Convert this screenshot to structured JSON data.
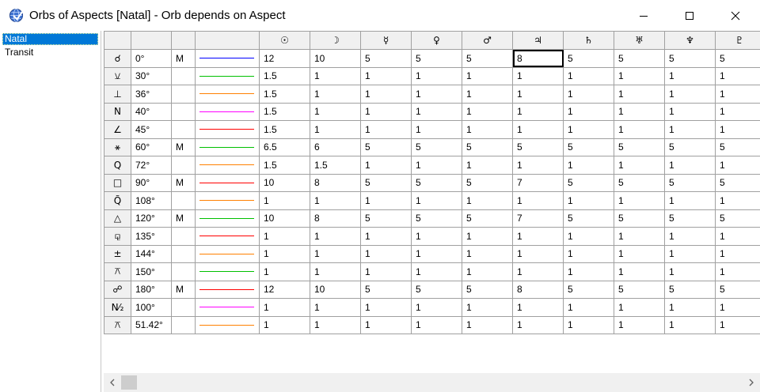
{
  "window": {
    "title": "Orbs of Aspects [Natal] - Orb depends on Aspect",
    "minimize_icon": "minimize-icon",
    "maximize_icon": "maximize-icon",
    "close_icon": "close-icon"
  },
  "sidebar": {
    "items": [
      {
        "label": "Natal",
        "selected": true
      },
      {
        "label": "Transit",
        "selected": false
      }
    ]
  },
  "planets": [
    {
      "glyph": "☉",
      "name": "sun"
    },
    {
      "glyph": "☽",
      "name": "moon"
    },
    {
      "glyph": "☿",
      "name": "mercury"
    },
    {
      "glyph": "♀",
      "name": "venus"
    },
    {
      "glyph": "♂",
      "name": "mars"
    },
    {
      "glyph": "♃",
      "name": "jupiter"
    },
    {
      "glyph": "♄",
      "name": "saturn"
    },
    {
      "glyph": "♅",
      "name": "uranus"
    },
    {
      "glyph": "♆",
      "name": "neptune"
    },
    {
      "glyph": "♇",
      "name": "pluto"
    }
  ],
  "aspects": [
    {
      "glyph": "☌",
      "name": "conjunction",
      "angle": "0°",
      "major": "M",
      "color": "#0000ff",
      "orbs": [
        "12",
        "10",
        "5",
        "5",
        "5",
        "8",
        "5",
        "5",
        "5",
        "5"
      ]
    },
    {
      "glyph": "⚺",
      "name": "semisextile",
      "angle": "30°",
      "major": "",
      "color": "#00c000",
      "orbs": [
        "1.5",
        "1",
        "1",
        "1",
        "1",
        "1",
        "1",
        "1",
        "1",
        "1"
      ]
    },
    {
      "glyph": "⊥",
      "name": "decile",
      "angle": "36°",
      "major": "",
      "color": "#ff8000",
      "orbs": [
        "1.5",
        "1",
        "1",
        "1",
        "1",
        "1",
        "1",
        "1",
        "1",
        "1"
      ]
    },
    {
      "glyph": "N",
      "name": "novile",
      "angle": "40°",
      "major": "",
      "color": "#ff00ff",
      "orbs": [
        "1.5",
        "1",
        "1",
        "1",
        "1",
        "1",
        "1",
        "1",
        "1",
        "1"
      ]
    },
    {
      "glyph": "∠",
      "name": "semisquare",
      "angle": "45°",
      "major": "",
      "color": "#ff0000",
      "orbs": [
        "1.5",
        "1",
        "1",
        "1",
        "1",
        "1",
        "1",
        "1",
        "1",
        "1"
      ]
    },
    {
      "glyph": "⚹",
      "name": "sextile",
      "angle": "60°",
      "major": "M",
      "color": "#00c000",
      "orbs": [
        "6.5",
        "6",
        "5",
        "5",
        "5",
        "5",
        "5",
        "5",
        "5",
        "5"
      ]
    },
    {
      "glyph": "Q",
      "name": "quintile",
      "angle": "72°",
      "major": "",
      "color": "#ff8000",
      "orbs": [
        "1.5",
        "1.5",
        "1",
        "1",
        "1",
        "1",
        "1",
        "1",
        "1",
        "1"
      ]
    },
    {
      "glyph": "□",
      "name": "square",
      "angle": "90°",
      "major": "M",
      "color": "#ff0000",
      "orbs": [
        "10",
        "8",
        "5",
        "5",
        "5",
        "7",
        "5",
        "5",
        "5",
        "5"
      ]
    },
    {
      "glyph": "Q̃",
      "name": "tredecile",
      "angle": "108°",
      "major": "",
      "color": "#ff8000",
      "orbs": [
        "1",
        "1",
        "1",
        "1",
        "1",
        "1",
        "1",
        "1",
        "1",
        "1"
      ]
    },
    {
      "glyph": "△",
      "name": "trine",
      "angle": "120°",
      "major": "M",
      "color": "#00c000",
      "orbs": [
        "10",
        "8",
        "5",
        "5",
        "5",
        "7",
        "5",
        "5",
        "5",
        "5"
      ]
    },
    {
      "glyph": "⚼",
      "name": "sesquiquadrate",
      "angle": "135°",
      "major": "",
      "color": "#ff0000",
      "orbs": [
        "1",
        "1",
        "1",
        "1",
        "1",
        "1",
        "1",
        "1",
        "1",
        "1"
      ]
    },
    {
      "glyph": "±",
      "name": "biquintile",
      "angle": "144°",
      "major": "",
      "color": "#ff8000",
      "orbs": [
        "1",
        "1",
        "1",
        "1",
        "1",
        "1",
        "1",
        "1",
        "1",
        "1"
      ]
    },
    {
      "glyph": "⚻",
      "name": "quincunx",
      "angle": "150°",
      "major": "",
      "color": "#00c000",
      "orbs": [
        "1",
        "1",
        "1",
        "1",
        "1",
        "1",
        "1",
        "1",
        "1",
        "1"
      ]
    },
    {
      "glyph": "☍",
      "name": "opposition",
      "angle": "180°",
      "major": "M",
      "color": "#ff0000",
      "orbs": [
        "12",
        "10",
        "5",
        "5",
        "5",
        "8",
        "5",
        "5",
        "5",
        "5"
      ]
    },
    {
      "glyph": "N⁄₂",
      "name": "quadnovile",
      "angle": "100°",
      "major": "",
      "color": "#ff00ff",
      "orbs": [
        "1",
        "1",
        "1",
        "1",
        "1",
        "1",
        "1",
        "1",
        "1",
        "1"
      ]
    },
    {
      "glyph": "⚻",
      "name": "septile",
      "angle": "51.42°",
      "major": "",
      "color": "#ff8000",
      "orbs": [
        "1",
        "1",
        "1",
        "1",
        "1",
        "1",
        "1",
        "1",
        "1",
        "1"
      ]
    }
  ],
  "current_cell": {
    "row": 0,
    "col": 5
  },
  "scrollbar": {
    "left_icon": "scroll-left-icon",
    "right_icon": "scroll-right-icon"
  }
}
